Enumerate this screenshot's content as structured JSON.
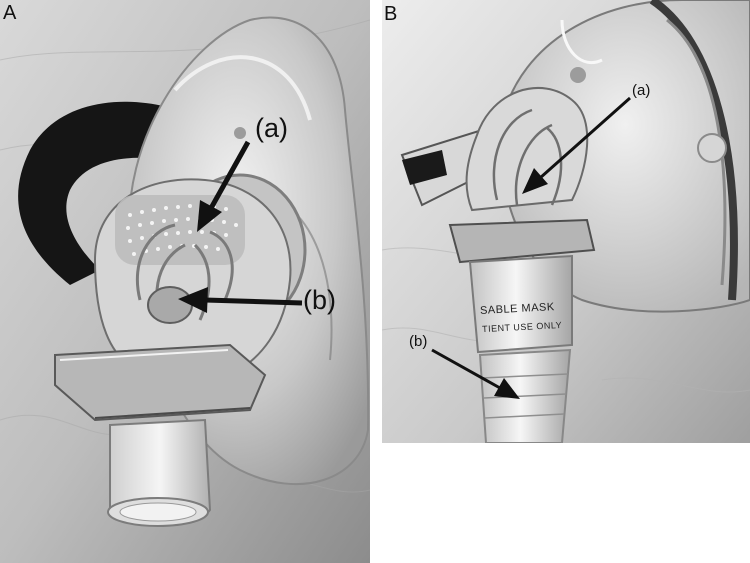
{
  "panels": {
    "a": {
      "letter": "A",
      "callouts": {
        "a": "(a)",
        "b": "(b)"
      }
    },
    "b": {
      "letter": "B",
      "callouts": {
        "a": "(a)",
        "b": "(b)"
      },
      "mask_label_line1": "SABLE MASK",
      "mask_label_line2": "TIENT USE ONLY"
    }
  },
  "colors": {
    "background": "#ffffff",
    "arrow": "#111111"
  }
}
